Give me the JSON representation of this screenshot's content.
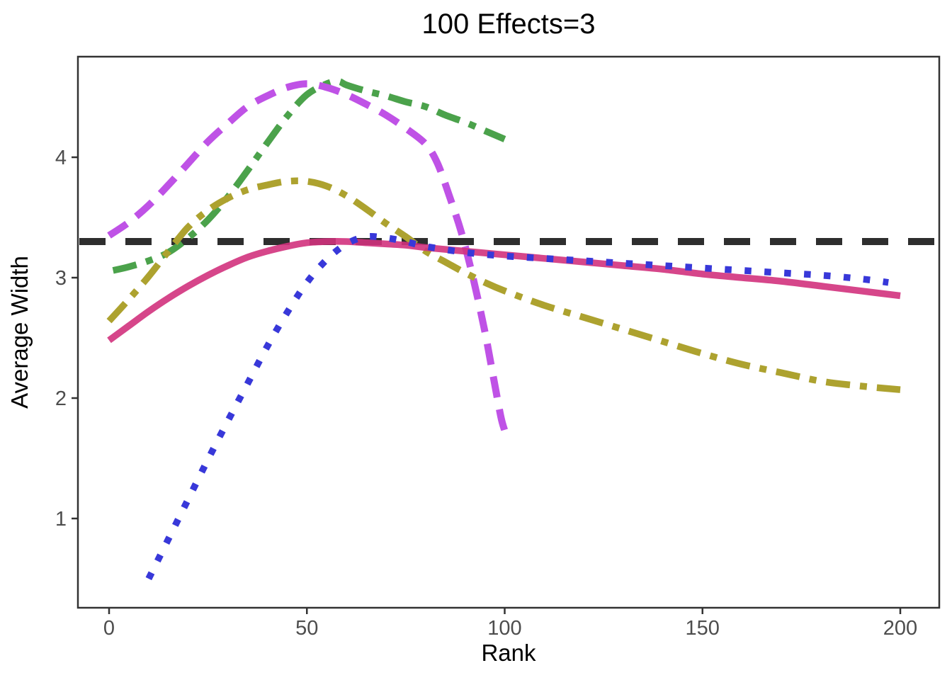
{
  "title": "100 Effects=3",
  "axes": {
    "x_label": "Rank",
    "y_label": "Average Width",
    "x_ticks": [
      0,
      50,
      100,
      150,
      200
    ],
    "y_ticks": [
      1,
      2,
      3,
      4
    ],
    "xlim": [
      0,
      200
    ],
    "ylim": [
      0.35,
      4.8
    ]
  },
  "colors": {
    "reference_black": "#2e2e2e",
    "pink": "#d2327d",
    "blue": "#3838d9",
    "gold": "#ada22f",
    "purple": "#bf52e6",
    "green": "#4ba24b",
    "axis_border": "#333333",
    "tick_text": "#4d4d4d"
  },
  "chart_data": {
    "type": "line",
    "title": "100 Effects=3",
    "xlabel": "Rank",
    "ylabel": "Average Width",
    "xlim": [
      0,
      200
    ],
    "ylim": [
      0.35,
      4.8
    ],
    "x_ticks": [
      0,
      50,
      100,
      150,
      200
    ],
    "y_ticks": [
      1,
      2,
      3,
      4
    ],
    "grid": false,
    "legend": "none",
    "series": [
      {
        "name": "reference-line",
        "color": "#2e2e2e",
        "linetype": "dashed",
        "reference": true,
        "y_value": 3.3
      },
      {
        "name": "green-dashdot",
        "color": "#4ba24b",
        "linetype": "dotdash",
        "x": [
          1,
          5,
          10,
          15,
          20,
          25,
          30,
          35,
          40,
          45,
          50,
          55,
          58,
          60,
          65,
          70,
          75,
          80,
          85,
          90,
          95,
          100
        ],
        "y": [
          3.06,
          3.09,
          3.14,
          3.21,
          3.33,
          3.48,
          3.67,
          3.89,
          4.12,
          4.34,
          4.52,
          4.61,
          4.63,
          4.6,
          4.55,
          4.51,
          4.46,
          4.42,
          4.35,
          4.29,
          4.22,
          4.15
        ]
      },
      {
        "name": "purple-longdash",
        "color": "#bf52e6",
        "linetype": "longdash",
        "x": [
          0,
          5,
          10,
          15,
          20,
          25,
          30,
          35,
          40,
          45,
          50,
          55,
          60,
          65,
          70,
          75,
          80,
          83,
          86,
          89,
          92,
          95,
          97,
          99,
          100
        ],
        "y": [
          3.35,
          3.46,
          3.6,
          3.77,
          3.95,
          4.13,
          4.28,
          4.42,
          4.51,
          4.58,
          4.61,
          4.58,
          4.52,
          4.44,
          4.35,
          4.24,
          4.11,
          3.95,
          3.68,
          3.38,
          3.0,
          2.55,
          2.2,
          1.85,
          1.73
        ]
      },
      {
        "name": "gold-dashdot",
        "color": "#ada22f",
        "linetype": "dotdash",
        "x": [
          0,
          5,
          10,
          15,
          20,
          25,
          30,
          35,
          40,
          45,
          50,
          55,
          60,
          65,
          70,
          75,
          80,
          85,
          90,
          95,
          100,
          110,
          120,
          130,
          140,
          150,
          160,
          170,
          180,
          190,
          200
        ],
        "y": [
          2.64,
          2.82,
          3.01,
          3.22,
          3.42,
          3.56,
          3.66,
          3.73,
          3.77,
          3.8,
          3.8,
          3.76,
          3.68,
          3.57,
          3.45,
          3.34,
          3.22,
          3.13,
          3.04,
          2.96,
          2.89,
          2.77,
          2.67,
          2.57,
          2.47,
          2.37,
          2.28,
          2.21,
          2.14,
          2.1,
          2.07
        ]
      },
      {
        "name": "pink-solid",
        "color": "#d2327d",
        "linetype": "solid",
        "x": [
          0,
          5,
          10,
          15,
          20,
          25,
          30,
          35,
          40,
          45,
          50,
          55,
          60,
          65,
          70,
          75,
          80,
          90,
          100,
          110,
          120,
          130,
          140,
          150,
          160,
          170,
          180,
          190,
          200
        ],
        "y": [
          2.48,
          2.6,
          2.72,
          2.83,
          2.93,
          3.02,
          3.1,
          3.17,
          3.22,
          3.26,
          3.29,
          3.3,
          3.3,
          3.29,
          3.28,
          3.27,
          3.25,
          3.22,
          3.19,
          3.16,
          3.13,
          3.1,
          3.07,
          3.03,
          3.0,
          2.97,
          2.93,
          2.89,
          2.85
        ]
      },
      {
        "name": "blue-dotted",
        "color": "#3838d9",
        "linetype": "dotted",
        "x": [
          10,
          15,
          20,
          25,
          30,
          35,
          40,
          45,
          50,
          55,
          60,
          65,
          70,
          75,
          80,
          90,
          100,
          110,
          120,
          130,
          140,
          150,
          160,
          170,
          180,
          190,
          197
        ],
        "y": [
          0.5,
          0.83,
          1.16,
          1.49,
          1.81,
          2.12,
          2.43,
          2.71,
          2.96,
          3.15,
          3.28,
          3.34,
          3.33,
          3.3,
          3.26,
          3.21,
          3.18,
          3.16,
          3.14,
          3.12,
          3.1,
          3.08,
          3.06,
          3.04,
          3.02,
          2.99,
          2.96
        ]
      }
    ]
  }
}
